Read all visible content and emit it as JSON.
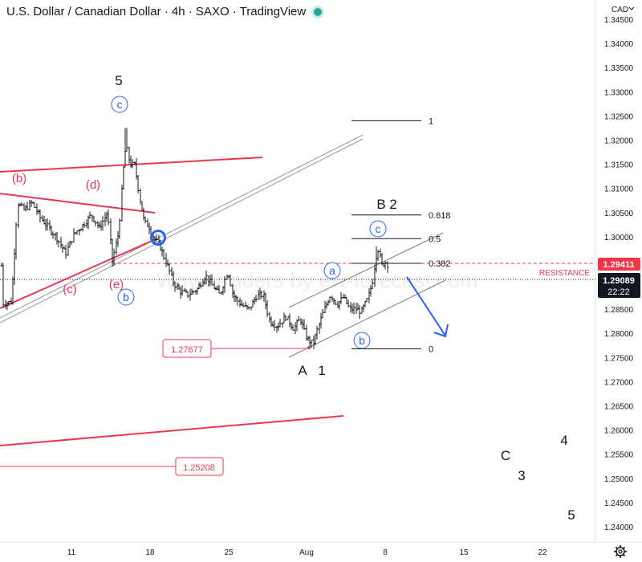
{
  "header": {
    "title": "U.S. Dollar / Canadian Dollar · 4h · SAXO · TradingView"
  },
  "currency": "CAD",
  "watermark": "Wave traders by ew-forecast.com",
  "colors": {
    "bar": "#131722",
    "red_line": "#e8384f",
    "blue_label": "#2962ff",
    "grey_channel": "#9598a1",
    "resistance_line": "#e8384f",
    "price_tag_red": "#f23645",
    "price_tag_dark": "#131722"
  },
  "chart_data": {
    "type": "candlestick-ohlc",
    "instrument": "USDCAD",
    "timeframe": "4h",
    "ylim": [
      1.2372,
      1.3515
    ],
    "y_ticks": [
      "1.34500",
      "1.34000",
      "1.33500",
      "1.33000",
      "1.32500",
      "1.32000",
      "1.31500",
      "1.31000",
      "1.30500",
      "1.30000",
      "1.29500",
      "1.29000",
      "1.28500",
      "1.28000",
      "1.27500",
      "1.27000",
      "1.26500",
      "1.26000",
      "1.25500",
      "1.25000",
      "1.24500",
      "1.24000"
    ],
    "x_ticks": [
      "11",
      "18",
      "25",
      "Aug",
      "8",
      "15",
      "22"
    ],
    "last_price": "1.29089",
    "countdown": "22:22",
    "resistance_price": "1.29411",
    "resistance_label": "RESISTANCE",
    "price_labels": [
      "1.27677",
      "1.25208"
    ],
    "fib_levels": [
      {
        "label": "1",
        "value": 1.324
      },
      {
        "label": "0.618",
        "value": 1.3045
      },
      {
        "label": "0.5",
        "value": 1.2996
      },
      {
        "label": "0.382",
        "value": 1.2945
      },
      {
        "label": "0",
        "value": 1.2768
      }
    ],
    "wave_labels_black": [
      "5",
      "B",
      "2",
      "A",
      "1",
      "C",
      "3",
      "4",
      "5"
    ],
    "wave_labels_red": [
      "(b)",
      "(d)",
      "(c)",
      "(e)"
    ],
    "wave_labels_circled": [
      "c",
      "b",
      "a",
      "c",
      "b"
    ]
  }
}
